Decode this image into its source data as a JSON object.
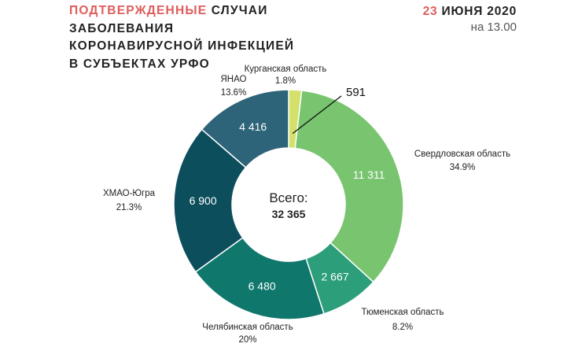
{
  "header": {
    "title_highlight": "ПОДТВЕРЖДЕННЫЕ",
    "title_line1_rest": "СЛУЧАИ",
    "title_line2": "ЗАБОЛЕВАНИЯ",
    "title_line3": "КОРОНАВИРУСНОЙ ИНФЕКЦИЕЙ",
    "title_line4": "В СУБЪЕКТАХ УРФО",
    "date_day": "23",
    "date_rest": "ИЮНЯ 2020",
    "time": "на 13.00"
  },
  "colors": {
    "accent": "#e05c5c",
    "text": "#222222"
  },
  "chart_data": {
    "type": "pie",
    "style": "donut",
    "total_label": "Всего:",
    "total_value": "32 365",
    "slices": [
      {
        "name": "Курганская область",
        "value": 591,
        "value_label": "591",
        "percent": "1.8%",
        "color": "#d3e06a"
      },
      {
        "name": "Свердловская область",
        "value": 11311,
        "value_label": "11 311",
        "percent": "34.9%",
        "color": "#78c46f"
      },
      {
        "name": "Тюменская область",
        "value": 2667,
        "value_label": "2 667",
        "percent": "8.2%",
        "color": "#2c9e7a"
      },
      {
        "name": "Челябинская область",
        "value": 6480,
        "value_label": "6 480",
        "percent": "20%",
        "color": "#10776d"
      },
      {
        "name": "ХМАО-Югра",
        "value": 6900,
        "value_label": "6 900",
        "percent": "21.3%",
        "color": "#0c4e5c"
      },
      {
        "name": "ЯНАО",
        "value": 4416,
        "value_label": "4 416",
        "percent": "13.6%",
        "color": "#2d6479"
      }
    ]
  }
}
